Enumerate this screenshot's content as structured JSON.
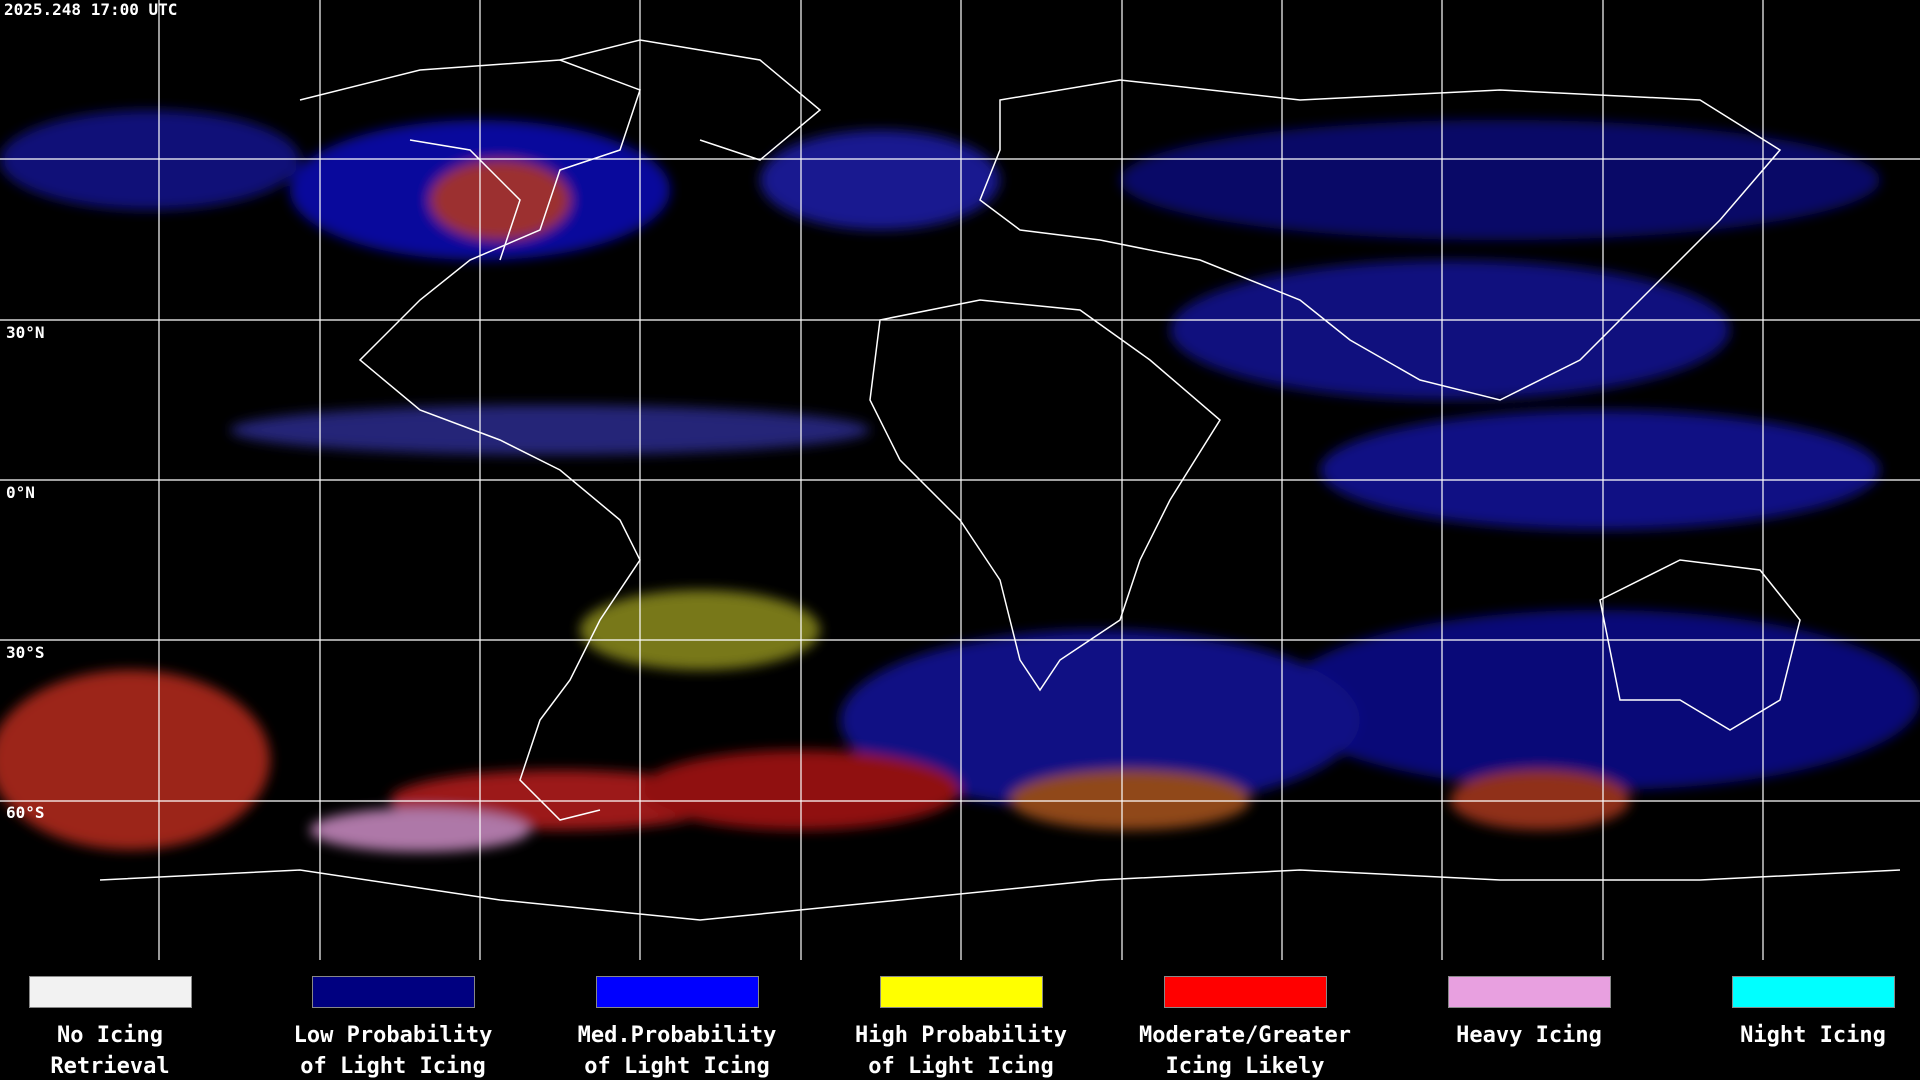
{
  "header": {
    "timestamp": "2025.248 17:00 UTC"
  },
  "map": {
    "latitude_labels": [
      "30°N",
      "0°N",
      "30°S",
      "60°S"
    ]
  },
  "legend": [
    {
      "lines": [
        "No Icing",
        "Retrieval"
      ],
      "color": "#f2f2f2"
    },
    {
      "lines": [
        "Low Probability",
        "of Light Icing"
      ],
      "color": "#000080"
    },
    {
      "lines": [
        "Med.Probability",
        "of Light Icing"
      ],
      "color": "#0000ff"
    },
    {
      "lines": [
        "High Probability",
        "of Light Icing"
      ],
      "color": "#ffff00"
    },
    {
      "lines": [
        "Moderate/Greater",
        "Icing Likely"
      ],
      "color": "#ff0000"
    },
    {
      "lines": [
        "Heavy Icing"
      ],
      "color": "#e8a0e0"
    },
    {
      "lines": [
        "Night Icing"
      ],
      "color": "#00ffff"
    }
  ]
}
